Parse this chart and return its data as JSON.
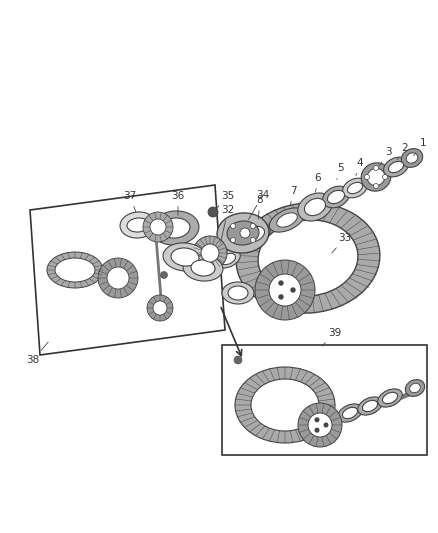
{
  "bg_color": "#ffffff",
  "line_color": "#444444",
  "label_color": "#333333",
  "figsize": [
    4.38,
    5.33
  ],
  "dpi": 100,
  "parts_color": "#888888",
  "gear_color": "#999999",
  "shaft_color": "#777777"
}
